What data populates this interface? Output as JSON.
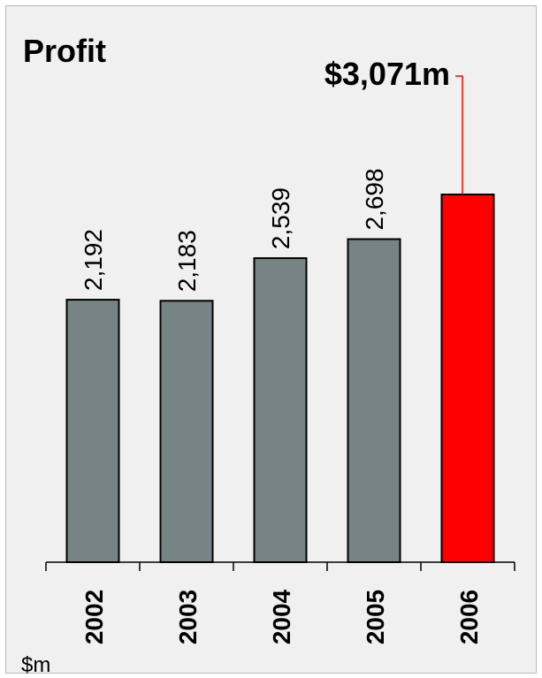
{
  "chart_data": {
    "type": "bar",
    "title": "Profit",
    "unit_label": "$m",
    "categories": [
      "2002",
      "2003",
      "2004",
      "2005",
      "2006"
    ],
    "values": [
      2192,
      2183,
      2539,
      2698,
      3071
    ],
    "value_labels": [
      "2,192",
      "2,183",
      "2,539",
      "2,698",
      ""
    ],
    "highlight": {
      "index": 4,
      "label": "$3,071m",
      "color": "#ff0000"
    },
    "bar_color": "#778485",
    "ylim": [
      0,
      3071
    ],
    "grid": false,
    "legend": "none"
  }
}
